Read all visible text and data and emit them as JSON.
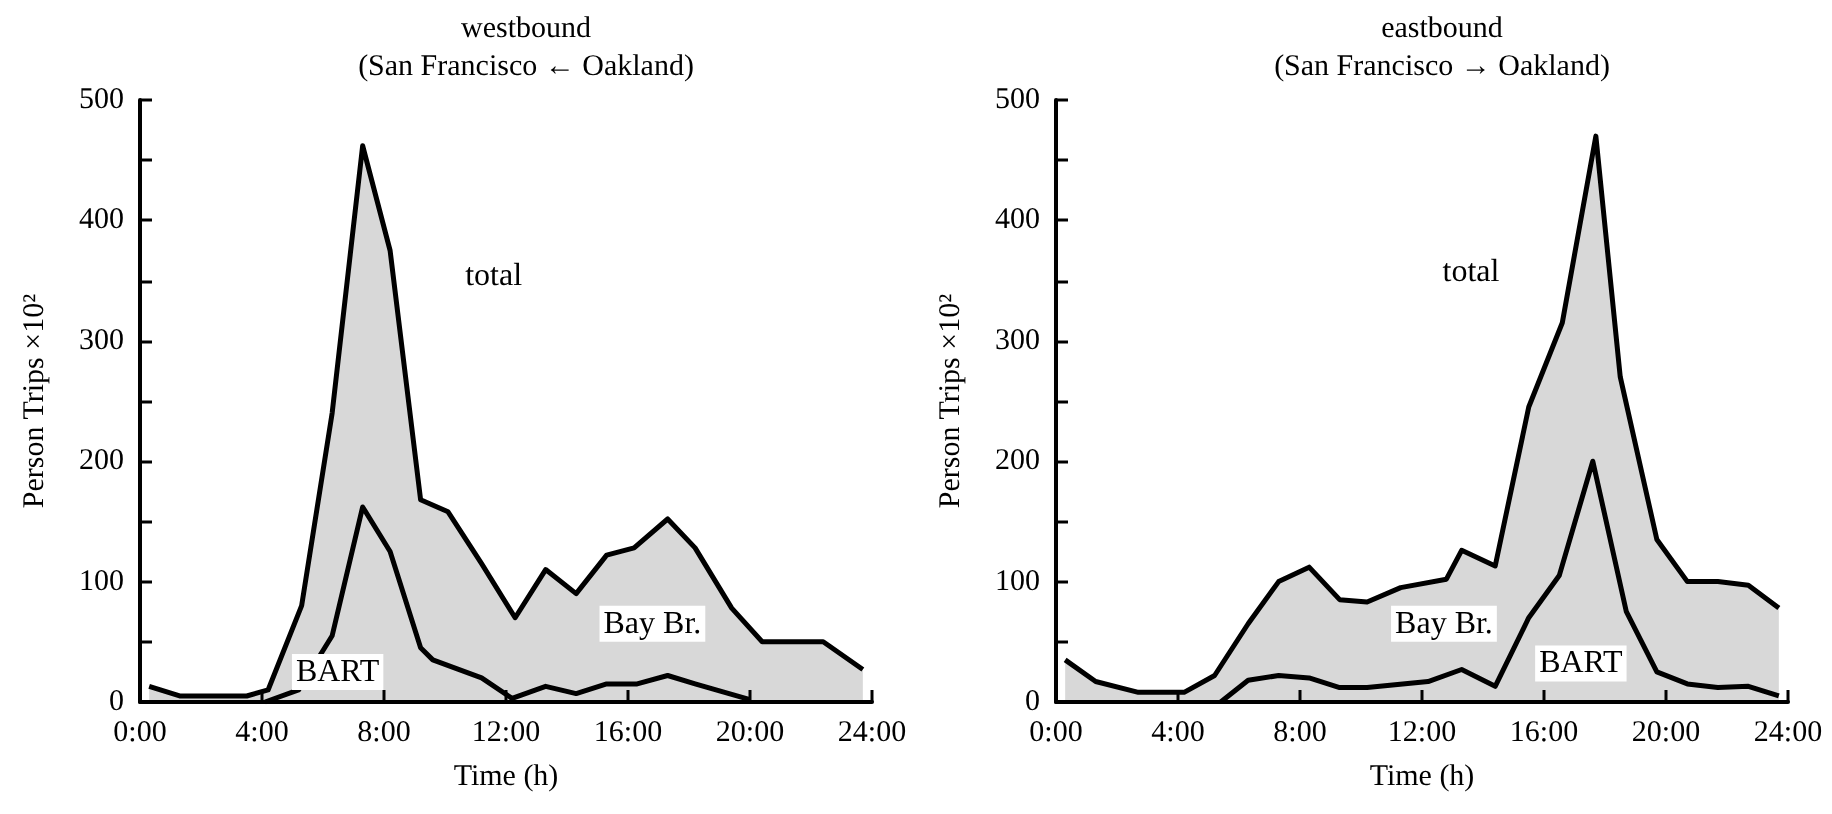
{
  "chart_data": [
    {
      "type": "area",
      "title": "westbound",
      "subtitle": "(San Francisco ← Oakland)",
      "xlabel": "Time (h)",
      "ylabel": "Person Trips ×10²",
      "xlim": [
        0,
        24
      ],
      "xticks": [
        {
          "value": 0,
          "label": "0:00"
        },
        {
          "value": 4,
          "label": "4:00"
        },
        {
          "value": 8,
          "label": "8:00"
        },
        {
          "value": 12,
          "label": "12:00"
        },
        {
          "value": 16,
          "label": "16:00"
        },
        {
          "value": 20,
          "label": "20:00"
        },
        {
          "value": 24,
          "label": "24:00"
        }
      ],
      "ylim": [
        0,
        500
      ],
      "yticks": [
        0,
        {
          "value": 50,
          "label": null
        },
        100,
        {
          "value": 150,
          "label": null
        },
        200,
        {
          "value": 250,
          "label": null
        },
        300,
        {
          "value": 350,
          "label": null
        },
        400,
        {
          "value": 450,
          "label": null
        },
        500
      ],
      "marker": "none",
      "annotations": [
        {
          "text": "total",
          "x": 8.3,
          "y": 354
        },
        "Bay Br.",
        "BART"
      ],
      "series": [
        {
          "color": "#000000",
          "x": [
            0.3,
            1.3,
            2.5,
            3.5,
            4.2,
            5.3,
            6.3,
            7.3,
            8.2,
            9.2,
            10.1,
            11.2,
            12.3,
            13.3,
            14.3,
            15.3,
            16.2,
            17.3,
            18.2,
            19.4,
            20.4,
            21.4,
            22.4,
            23.7
          ],
          "values": [
            13,
            5,
            5,
            5,
            10,
            80,
            240,
            462,
            375,
            168,
            158,
            115,
            70,
            110,
            90,
            122,
            128,
            152,
            128,
            78,
            50,
            50,
            50,
            27
          ]
        },
        {
          "type": "line",
          "color": "#000000",
          "x": [
            4.1,
            5.2,
            6.3,
            7.3,
            8.2,
            9.2,
            9.6,
            11.2,
            12.2,
            13.3,
            14.3,
            15.3,
            16.3,
            17.3,
            18.2,
            20.0
          ],
          "values": [
            0,
            10,
            55,
            162,
            125,
            45,
            35,
            20,
            3,
            13,
            7,
            15,
            15,
            22,
            15,
            2
          ]
        }
      ]
    },
    {
      "type": "area",
      "title": "eastbound",
      "subtitle": "(San Francisco → Oakland)",
      "xlabel": "Time (h)",
      "ylabel": "Person Trips ×10²",
      "xlim": [
        0,
        24
      ],
      "xticks": [
        {
          "value": 0,
          "label": "0:00"
        },
        {
          "value": 4,
          "label": "4:00"
        },
        {
          "value": 8,
          "label": "8:00"
        },
        {
          "value": 12,
          "label": "12:00"
        },
        {
          "value": 16,
          "label": "16:00"
        },
        {
          "value": 20,
          "label": "20:00"
        },
        {
          "value": 24,
          "label": "24:00"
        }
      ],
      "ylim": [
        0,
        500
      ],
      "yticks": [
        0,
        {
          "value": 50,
          "label": null
        },
        100,
        {
          "value": 150,
          "label": null
        },
        200,
        {
          "value": 250,
          "label": null
        },
        300,
        {
          "value": 350,
          "label": null
        },
        400,
        {
          "value": 450,
          "label": null
        },
        500
      ],
      "marker": "none",
      "annotations": [
        {
          "text": "total",
          "x": 16.9,
          "y": 357
        },
        "Bay Br.",
        "BART"
      ],
      "series": [
        {
          "color": "#000000",
          "x": [
            0.3,
            1.3,
            2.7,
            4.2,
            5.2,
            6.3,
            7.3,
            8.3,
            9.3,
            10.2,
            11.3,
            12.8,
            13.3,
            14.4,
            15.5,
            16.6,
            17.7,
            18.5,
            19.7,
            20.7,
            21.7,
            22.7,
            23.7
          ],
          "values": [
            35,
            17,
            8,
            8,
            22,
            65,
            100,
            112,
            85,
            83,
            95,
            102,
            126,
            113,
            245,
            315,
            470,
            270,
            135,
            100,
            100,
            97,
            78
          ]
        },
        {
          "type": "line",
          "color": "#000000",
          "x": [
            5.4,
            6.3,
            7.3,
            8.3,
            9.3,
            10.2,
            12.2,
            13.3,
            14.4,
            15.5,
            16.5,
            17.6,
            18.7,
            19.7,
            20.7,
            21.7,
            22.7,
            23.7
          ],
          "values": [
            0,
            18,
            22,
            20,
            12,
            12,
            17,
            27,
            13,
            70,
            105,
            200,
            75,
            25,
            15,
            12,
            13,
            5
          ]
        }
      ]
    }
  ]
}
